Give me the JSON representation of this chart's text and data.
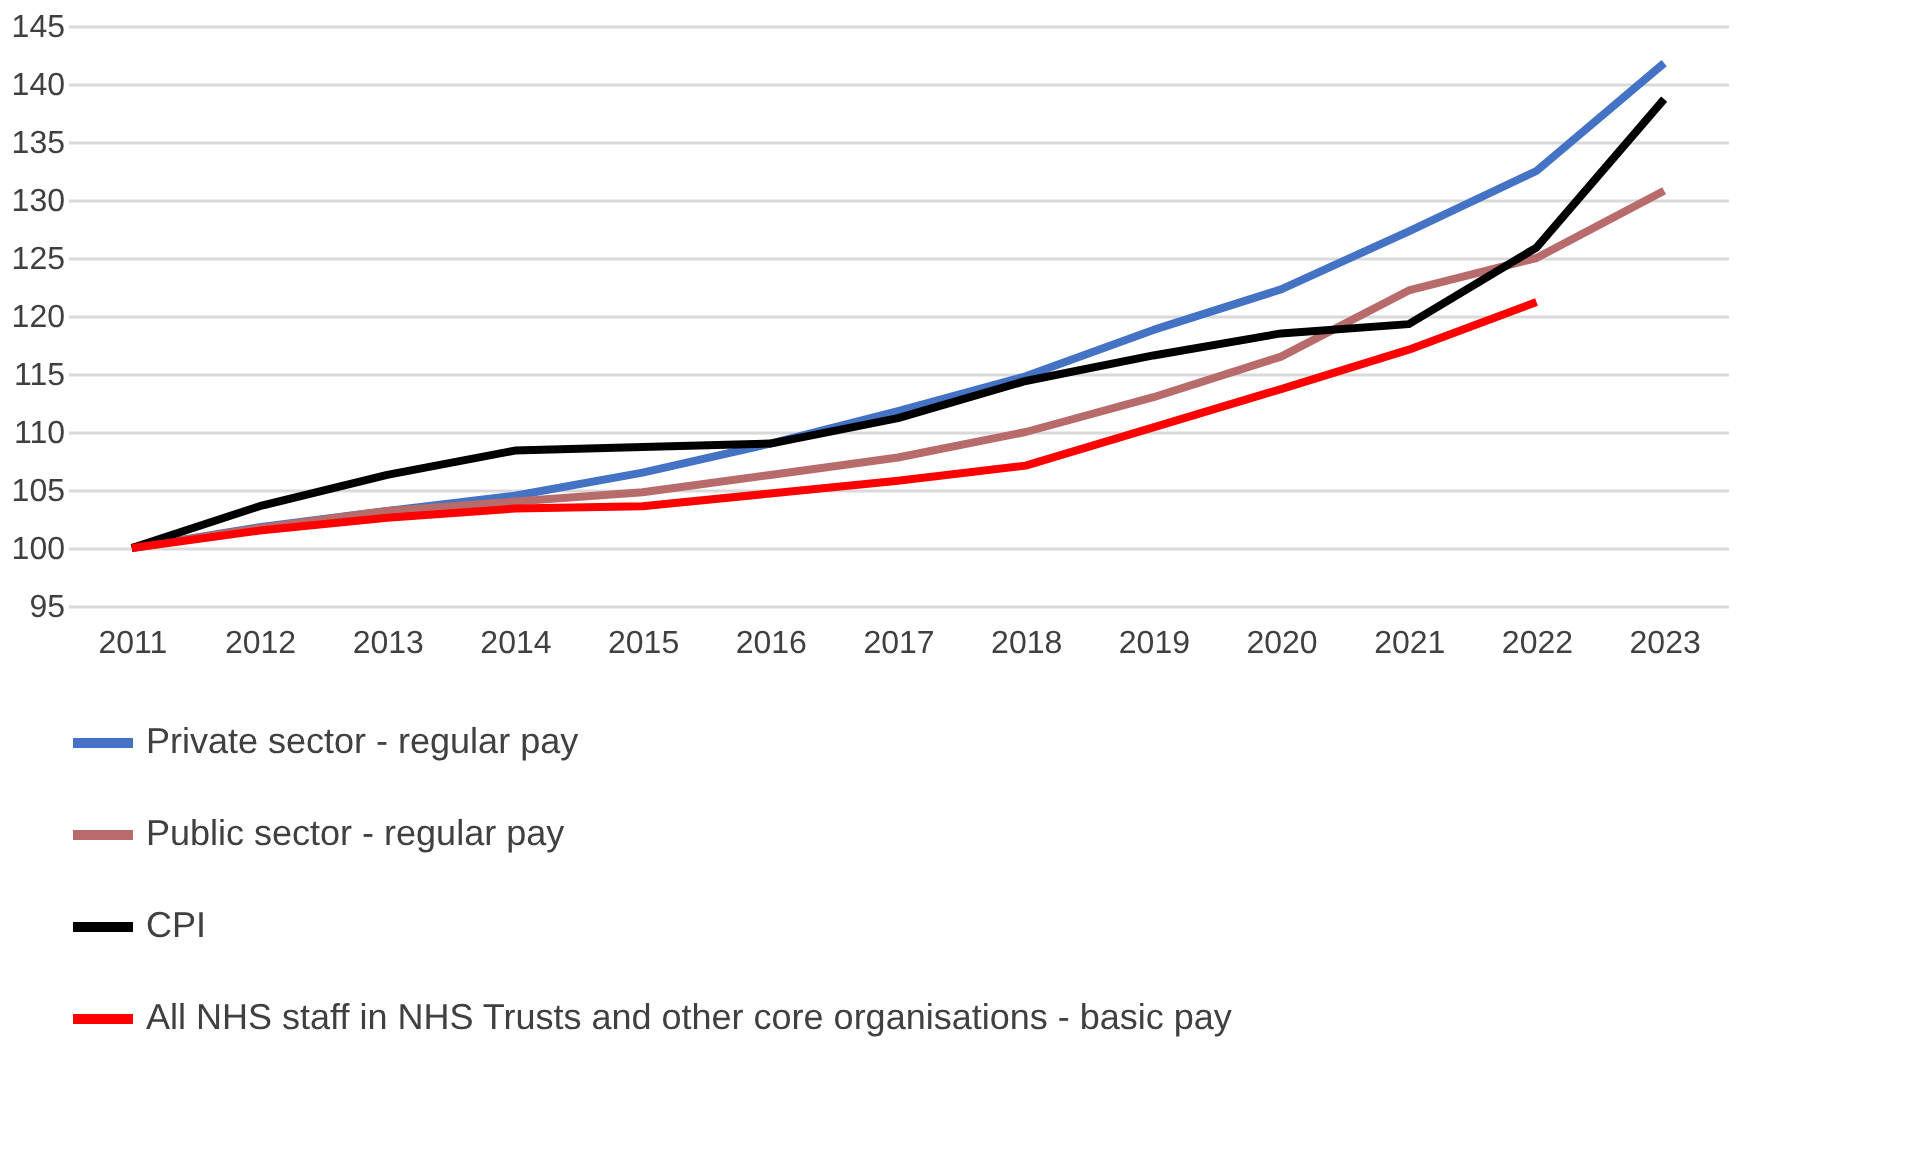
{
  "chart_data": {
    "type": "line",
    "categories": [
      "2011",
      "2012",
      "2013",
      "2014",
      "2015",
      "2016",
      "2017",
      "2018",
      "2019",
      "2020",
      "2021",
      "2022",
      "2023"
    ],
    "ylim": [
      95,
      145
    ],
    "yticks": [
      95,
      100,
      105,
      110,
      115,
      120,
      125,
      130,
      135,
      140,
      145
    ],
    "grid": "y",
    "legend": "bottom left",
    "line_style": "solid",
    "marker": "none",
    "series": [
      {
        "name": "Private sector - regular pay",
        "color": "#4472c4",
        "values": [
          100,
          101.8,
          103.2,
          104.5,
          106.5,
          109,
          111.8,
          114.8,
          118.8,
          122.3,
          127.3,
          132.5,
          141.8
        ]
      },
      {
        "name": "Public sector - regular pay",
        "color": "#b86b6b",
        "values": [
          100,
          101.7,
          103.2,
          104,
          104.8,
          106.3,
          107.8,
          110,
          113,
          116.5,
          122.2,
          125,
          130.8
        ]
      },
      {
        "name": "CPI",
        "color": "#000000",
        "values": [
          100,
          103.6,
          106.3,
          108.4,
          108.7,
          109,
          111.2,
          114.4,
          116.6,
          118.5,
          119.3,
          125.9,
          138.7
        ]
      },
      {
        "name": "All NHS staff in NHS Trusts and other core organisations - basic pay",
        "color": "#ff0000",
        "values": [
          100,
          101.5,
          102.6,
          103.4,
          103.6,
          104.7,
          105.8,
          107.1,
          110.4,
          113.7,
          117.1,
          121.2,
          null
        ]
      }
    ]
  }
}
